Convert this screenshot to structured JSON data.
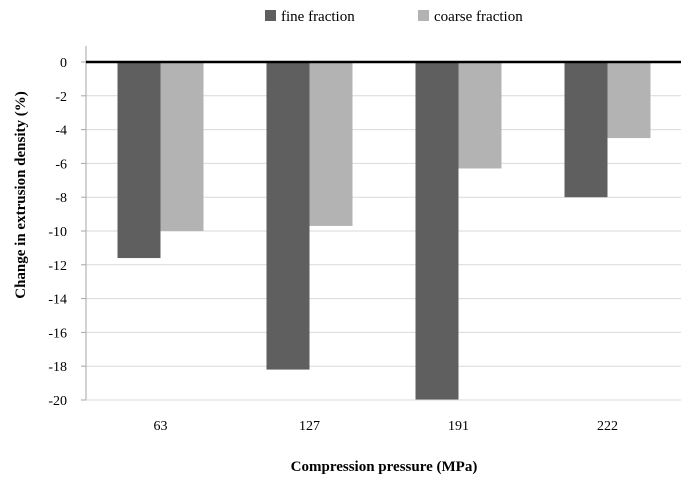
{
  "chart_data": {
    "type": "bar",
    "title": "",
    "xlabel": "Compression pressure (MPa)",
    "ylabel": "Change in extrusion density (%)",
    "categories": [
      "63",
      "127",
      "191",
      "222"
    ],
    "series": [
      {
        "name": "fine fraction",
        "color": "#5f5f5f",
        "values": [
          -11.6,
          -18.2,
          -20.0,
          -8.0
        ]
      },
      {
        "name": "coarse fraction",
        "color": "#b3b3b3",
        "values": [
          -10.0,
          -9.7,
          -6.3,
          -4.5
        ]
      }
    ],
    "ylim": [
      -20,
      0
    ],
    "yticks": [
      0,
      -2,
      -4,
      -6,
      -8,
      -10,
      -12,
      -14,
      -16,
      -18,
      -20
    ],
    "grid": true,
    "legend": "top-center"
  }
}
